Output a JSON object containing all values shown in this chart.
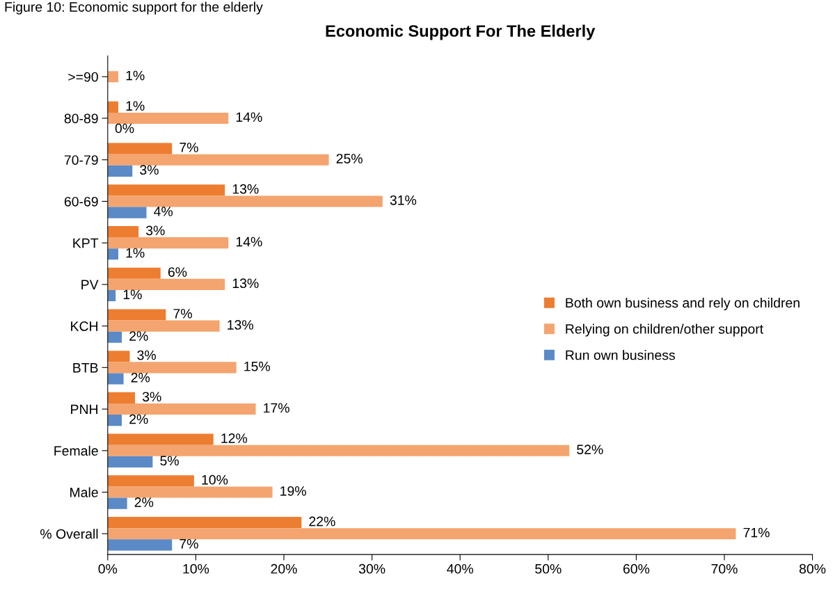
{
  "chart_data": {
    "type": "bar",
    "orientation": "horizontal",
    "title": "Economic Support For The Elderly",
    "annotations": [
      "Figure 10: Economic support for the elderly"
    ],
    "categories": [
      ">=90",
      "80-89",
      "70-79",
      "60-69",
      "KPT",
      "PV",
      "KCH",
      "BTB",
      "PNH",
      "Female",
      "Male",
      "% Overall"
    ],
    "series": [
      {
        "name": "Both own business and rely on children",
        "color": "#ed7d31",
        "values": [
          null,
          1.2,
          7.3,
          13.3,
          3.5,
          6.0,
          6.6,
          2.5,
          3.1,
          12.0,
          9.8,
          22.0
        ],
        "value_labels": [
          null,
          "1%",
          "7%",
          "13%",
          "3%",
          "6%",
          "7%",
          "3%",
          "3%",
          "12%",
          "10%",
          "22%"
        ]
      },
      {
        "name": "Relying on children/other support",
        "color": "#f4a46e",
        "values": [
          1.2,
          13.7,
          25.1,
          31.2,
          13.7,
          13.3,
          12.7,
          14.6,
          16.8,
          52.4,
          18.7,
          71.3
        ],
        "value_labels": [
          "1%",
          "14%",
          "25%",
          "31%",
          "14%",
          "13%",
          "13%",
          "15%",
          "17%",
          "52%",
          "19%",
          "71%"
        ]
      },
      {
        "name": "Run own business",
        "color": "#5b8ac6",
        "values": [
          null,
          0,
          2.8,
          4.4,
          1.2,
          0.9,
          1.6,
          1.8,
          1.6,
          5.1,
          2.2,
          7.3
        ],
        "value_labels": [
          null,
          "0%",
          "3%",
          "4%",
          "1%",
          "1%",
          "2%",
          "2%",
          "2%",
          "5%",
          "2%",
          "7%"
        ]
      }
    ],
    "xlim": [
      0,
      80
    ],
    "xticks": [
      {
        "value": 0,
        "label": "0%"
      },
      {
        "value": 10,
        "label": "10%"
      },
      {
        "value": 20,
        "label": "20%"
      },
      {
        "value": 30,
        "label": "30%"
      },
      {
        "value": 40,
        "label": "40%"
      },
      {
        "value": 50,
        "label": "50%"
      },
      {
        "value": 60,
        "label": "60%"
      },
      {
        "value": 70,
        "label": "70%"
      },
      {
        "value": 80,
        "label": "80%"
      }
    ],
    "legend": "right",
    "grid": false
  }
}
